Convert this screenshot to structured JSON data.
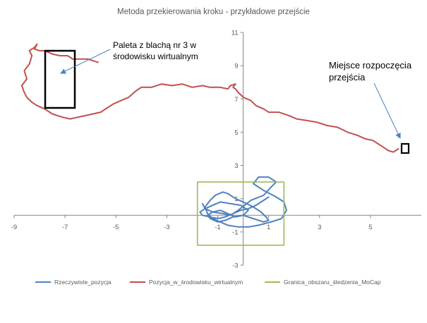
{
  "chart_data": {
    "type": "scatter",
    "title": "Metoda  przekierowania kroku - przykładowe przejście",
    "xlim": [
      -9,
      7
    ],
    "ylim": [
      -3,
      11
    ],
    "x_ticks": [
      "-9",
      "-7",
      "-5",
      "-3",
      "-1",
      "1",
      "3",
      "5"
    ],
    "y_ticks": [
      "11",
      "9",
      "7",
      "5",
      "3",
      "1",
      "-1",
      "-3"
    ],
    "grid": "off",
    "legend_position": "bottom",
    "series": [
      {
        "name": "Rzeczywiste_pozycja",
        "color": "#4f81bd",
        "x": [
          -1.6,
          -1.5,
          -1.2,
          -0.8,
          -0.5,
          -0.2,
          0.3,
          0.8,
          1.1,
          1.3,
          1.0,
          0.6,
          0.4,
          0.8,
          1.3,
          1.6,
          1.7,
          1.5,
          1.1,
          0.6,
          0.2,
          -0.2,
          -0.6,
          -0.9,
          -1.2,
          -1.4,
          -1.5,
          -1.3,
          -1.1,
          -0.8,
          -0.6,
          -0.3,
          0.0,
          0.4,
          0.7,
          0.9,
          1.0,
          0.8,
          0.4,
          0.0,
          -0.4,
          -0.7,
          -1.0,
          -1.3,
          -1.4,
          -1.2,
          -0.9,
          -0.6,
          -0.3,
          0.0,
          0.2,
          -0.1,
          -0.5,
          -0.9,
          -1.2,
          -1.5,
          -1.7,
          -1.6,
          -1.3,
          -1.0,
          -0.7,
          -0.4,
          -0.1,
          0.2,
          0.5,
          0.8,
          1.0
        ],
        "y": [
          0.7,
          0.4,
          0.2,
          0.1,
          0.0,
          0.3,
          0.9,
          1.2,
          1.7,
          2.0,
          2.3,
          2.3,
          1.9,
          1.5,
          1.1,
          0.8,
          0.3,
          -0.2,
          -0.4,
          -0.6,
          -0.7,
          -0.7,
          -0.6,
          -0.4,
          -0.2,
          0.1,
          0.5,
          0.9,
          1.2,
          1.4,
          1.3,
          1.0,
          0.8,
          0.5,
          0.2,
          -0.1,
          -0.3,
          -0.4,
          -0.2,
          0.0,
          -0.1,
          -0.3,
          -0.4,
          -0.2,
          0.0,
          0.2,
          0.3,
          0.1,
          -0.1,
          0.0,
          0.3,
          0.6,
          0.7,
          0.8,
          0.6,
          0.4,
          0.2,
          0.0,
          -0.1,
          -0.2,
          -0.1,
          0.1,
          0.3,
          0.4,
          0.6,
          0.9,
          1.1
        ]
      },
      {
        "name": "Pozycja_w_środowisku_wirtualnym",
        "color": "#c0504d",
        "x": [
          6.1,
          5.9,
          5.7,
          5.5,
          5.3,
          5.1,
          4.8,
          4.5,
          4.1,
          3.7,
          3.3,
          2.9,
          2.5,
          2.1,
          1.8,
          1.4,
          1.0,
          0.8,
          0.5,
          0.3,
          0.0,
          -0.2,
          -0.3,
          -0.4,
          -0.3,
          -0.5,
          -0.6,
          -0.9,
          -1.3,
          -1.6,
          -2.0,
          -2.4,
          -2.8,
          -3.2,
          -3.6,
          -4.0,
          -4.2,
          -4.5,
          -4.8,
          -5.1,
          -5.4,
          -5.6,
          -5.9,
          -6.2,
          -6.5,
          -6.8,
          -7.1,
          -7.3,
          -7.5,
          -7.8,
          -8.1,
          -8.3,
          -8.5,
          -8.6,
          -8.7,
          -8.5,
          -8.6,
          -8.4,
          -8.3,
          -8.4,
          -8.2,
          -8.1,
          -8.2,
          -8.0,
          -7.8,
          -7.5,
          -7.2,
          -6.9,
          -6.7,
          -6.4,
          -6.1,
          -5.9,
          -5.7
        ],
        "y": [
          4.0,
          3.8,
          3.9,
          4.1,
          4.3,
          4.5,
          4.6,
          4.8,
          5.0,
          5.3,
          5.4,
          5.6,
          5.7,
          5.8,
          6.0,
          6.2,
          6.2,
          6.4,
          6.6,
          6.9,
          7.1,
          7.4,
          7.6,
          7.7,
          7.9,
          7.8,
          7.6,
          7.7,
          7.7,
          7.8,
          7.7,
          7.9,
          7.8,
          7.9,
          7.7,
          7.7,
          7.5,
          7.1,
          6.9,
          6.7,
          6.4,
          6.2,
          6.1,
          6.0,
          5.9,
          5.8,
          5.9,
          6.0,
          6.1,
          6.4,
          6.6,
          6.8,
          7.1,
          7.4,
          7.8,
          8.2,
          8.7,
          9.1,
          9.6,
          9.9,
          10.1,
          10.3,
          10.0,
          9.9,
          9.9,
          9.7,
          9.6,
          9.6,
          9.4,
          9.4,
          9.4,
          9.3,
          9.2
        ]
      },
      {
        "name": "Granica_obszaru_śledzenia_MoCap",
        "color": "#9bbb59",
        "x": [
          -1.8,
          1.6,
          1.6,
          -1.8,
          -1.8
        ],
        "y": [
          -1.8,
          -1.8,
          2.0,
          2.0,
          -1.8
        ]
      }
    ],
    "annotations": [
      {
        "text": [
          "Paleta z blachą nr 3 w",
          "środowisku wirtualnym"
        ]
      },
      {
        "text": [
          "Miejsce rozpoczęcia",
          "przejścia"
        ]
      }
    ]
  }
}
